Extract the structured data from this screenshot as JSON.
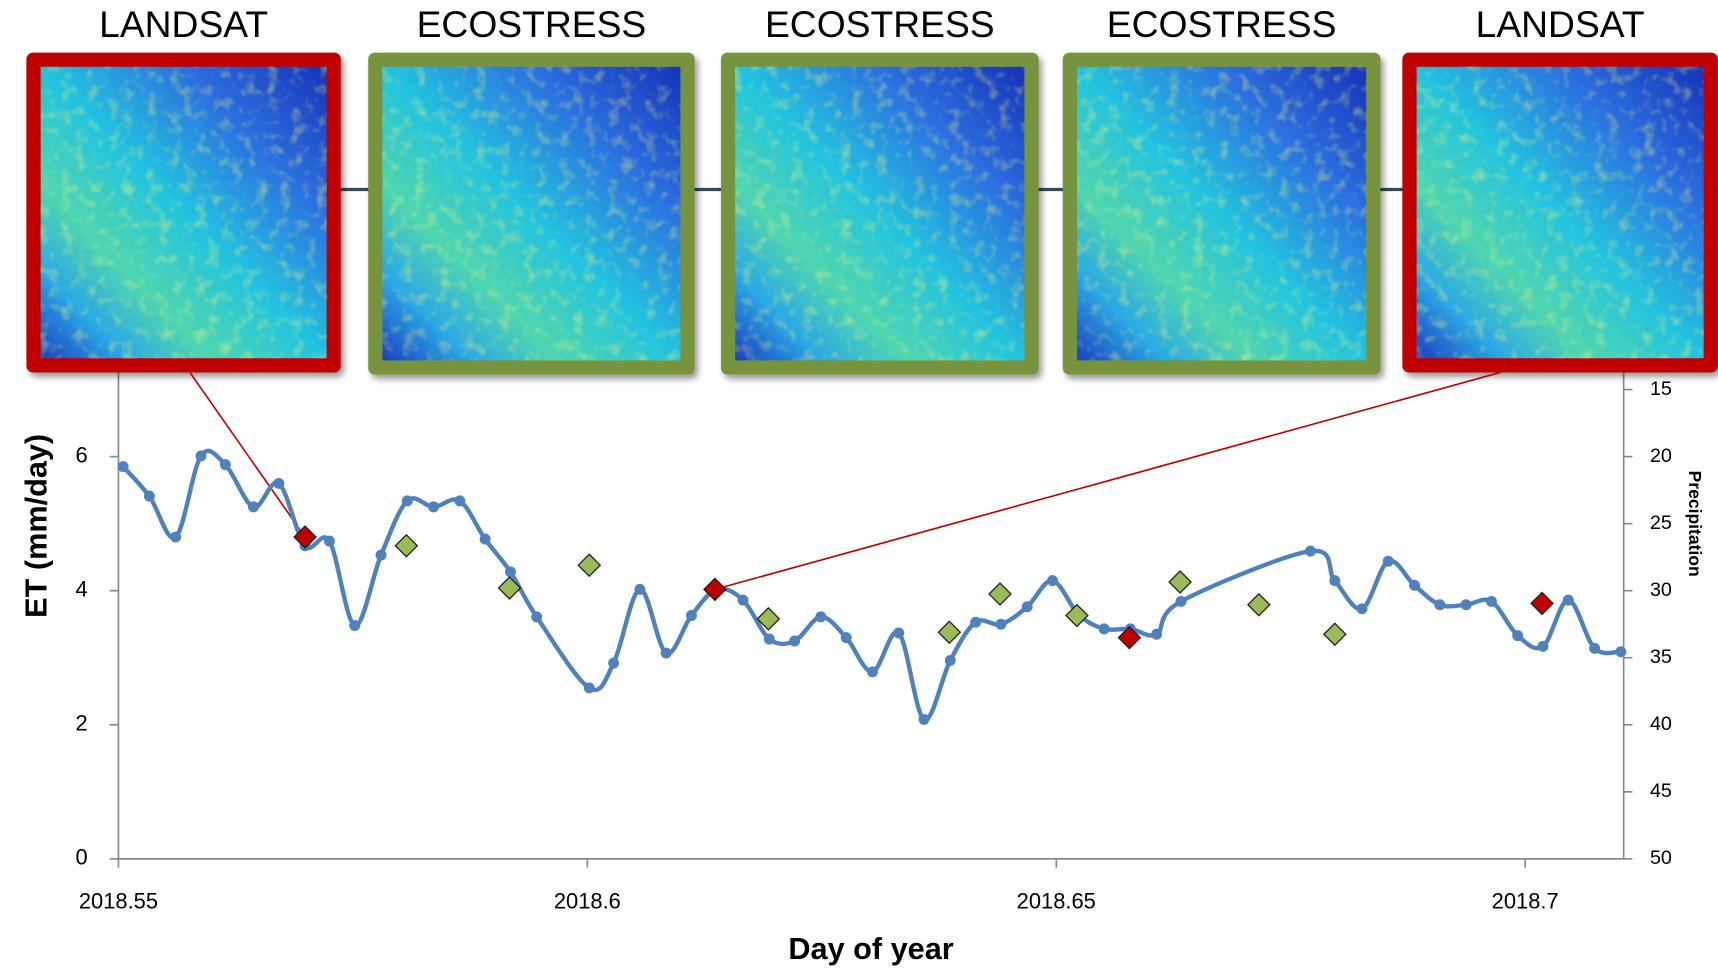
{
  "chart_data": {
    "type": "line",
    "y_label": "ET (mm/day)",
    "x_label": "Day of year",
    "y2_label": "Precipitation",
    "xlim": [
      2018.55,
      2018.7105
    ],
    "xticks": [
      2018.55,
      2018.6,
      2018.65,
      2018.7
    ],
    "ylim": [
      0,
      12
    ],
    "yticks": [
      0,
      2,
      4,
      6
    ],
    "y2lim": [
      50,
      -10
    ],
    "y2ticks": [
      15,
      20,
      25,
      30,
      35,
      40,
      45,
      50
    ],
    "panels": [
      {
        "label": "LANDSAT",
        "color": "#c00000"
      },
      {
        "label": "ECOSTRESS",
        "color": "#77933c"
      },
      {
        "label": "ECOSTRESS",
        "color": "#77933c"
      },
      {
        "label": "ECOSTRESS",
        "color": "#77933c"
      },
      {
        "label": "LANDSAT",
        "color": "#c00000"
      }
    ],
    "series": [
      {
        "color": "#4f81bd",
        "marker": "line",
        "x": [
          2018.5505,
          2018.5533,
          2018.5561,
          2018.5588,
          2018.5614,
          2018.5644,
          2018.5671,
          2018.5699,
          2018.5725,
          2018.5752,
          2018.578,
          2018.5808,
          2018.5836,
          2018.5864,
          2018.5891,
          2018.5918,
          2018.5946,
          2018.6002,
          2018.6028,
          2018.6056,
          2018.6084,
          2018.6111,
          2018.6138,
          2018.6166,
          2018.6194,
          2018.6221,
          2018.6249,
          2018.6276,
          2018.6304,
          2018.6332,
          2018.6359,
          2018.6387,
          2018.6414,
          2018.6441,
          2018.6469,
          2018.6496,
          2018.6524,
          2018.6551,
          2018.6579,
          2018.6607,
          2018.6633,
          2018.6771,
          2018.6797,
          2018.6826,
          2018.6854,
          2018.6882,
          2018.6909,
          2018.6937,
          2018.6964,
          2018.6992,
          2018.7019,
          2018.7046,
          2018.7074,
          2018.7102
        ],
        "values": [
          5.85,
          5.41,
          4.8,
          6.01,
          5.88,
          5.25,
          5.6,
          4.67,
          4.74,
          3.48,
          4.53,
          5.34,
          5.25,
          5.34,
          4.77,
          4.28,
          3.61,
          2.55,
          2.92,
          4.02,
          3.07,
          3.63,
          4.02,
          3.86,
          3.28,
          3.25,
          3.61,
          3.3,
          2.79,
          3.37,
          2.08,
          2.96,
          3.53,
          3.5,
          3.76,
          4.15,
          3.64,
          3.43,
          3.43,
          3.35,
          3.84,
          4.59,
          4.15,
          3.73,
          4.44,
          4.08,
          3.79,
          3.79,
          3.84,
          3.33,
          3.17,
          3.86,
          3.14,
          3.09
        ]
      },
      {
        "color": "#c00000",
        "marker": "diamond",
        "x": [
          2018.5699,
          2018.6136,
          2018.6578,
          2018.7018
        ],
        "values": [
          4.8,
          4.02,
          3.3,
          3.81
        ]
      },
      {
        "color": "#9bbb59",
        "marker": "diamond",
        "x": [
          2018.5807,
          2018.5917,
          2018.6002,
          2018.6193,
          2018.6386,
          2018.644,
          2018.6522,
          2018.6632,
          2018.6716,
          2018.6797
        ],
        "values": [
          4.67,
          4.04,
          4.38,
          3.58,
          3.38,
          3.95,
          3.63,
          4.13,
          3.79,
          3.35
        ]
      }
    ]
  }
}
